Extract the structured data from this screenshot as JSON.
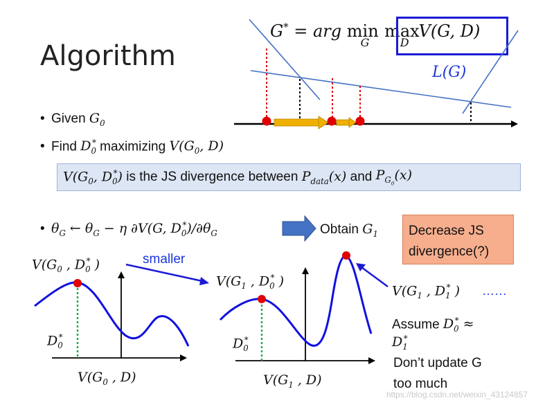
{
  "title": "Algorithm",
  "top_formula": {
    "lhs": "G* = arg min",
    "min_sub": "G",
    "max": "max",
    "max_sub": "D",
    "rhs": "V(G, D)"
  },
  "lg_label": "L(G)",
  "bullets": {
    "given": "Given G0",
    "find": "Find D0* maximizing V(G0, D)",
    "update": "θG ← θG − η ∂V(G, D0*)/∂θG"
  },
  "js_box": "V(G0, D0*) is the JS divergence between Pdata(x) and PG0(x)",
  "obtain": "Obtain G1",
  "decrease_box": [
    "Decrease JS",
    "divergence(?)"
  ],
  "left_graph": {
    "peak_label": "V(G0 , D0*)",
    "smaller": "smaller",
    "d_label": "D0*",
    "x_label": "V(G0 , D)"
  },
  "right_graph": {
    "peak_label": "V(G1 , D0*)",
    "d_label": "D0*",
    "x_label": "V(G1 , D)",
    "new_peak_label": "V(G1 , D1*)",
    "ellipsis": "……",
    "assume": "Assume D0* ≈ D1*",
    "note_line1": "Don’t update G",
    "note_line2": "too much"
  },
  "watermark": "https://blog.csdn.net/weixin_43124857",
  "colors": {
    "blue_curve": "#1010e0",
    "line_blue": "#4472c4",
    "red": "#e00000",
    "green": "#2da84a",
    "arrow_orange": "#f0b000"
  }
}
